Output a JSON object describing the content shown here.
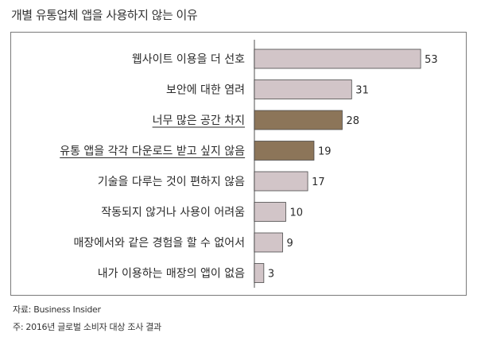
{
  "title": "개별 유통업체 앱을 사용하지 않는 이유",
  "chart_data": {
    "type": "bar",
    "orientation": "horizontal",
    "categories": [
      "웹사이트 이용을 더 선호",
      "보안에 대한 염려",
      "너무 많은 공간 차지",
      "유통 앱을 각각 다운로드 받고 싶지 않음",
      "기술을 다루는 것이 편하지 않음",
      "작동되지 않거나 사용이 어려움",
      "매장에서와 같은 경험을 할 수 없어서",
      "내가 이용하는 매장의 앱이 없음"
    ],
    "values": [
      53,
      31,
      28,
      19,
      17,
      10,
      9,
      3
    ],
    "highlighted": [
      false,
      false,
      true,
      true,
      false,
      false,
      false,
      false
    ],
    "xlim": [
      0,
      55
    ],
    "colors": {
      "default": "#d2c5c8",
      "highlight": "#8c7559",
      "axis": "#8a8a8a",
      "border": "#4a4a4a"
    }
  },
  "source": "자료: Business Insider",
  "footnote": "주: 2016년 글로벌 소비자 대상 조사 결과"
}
